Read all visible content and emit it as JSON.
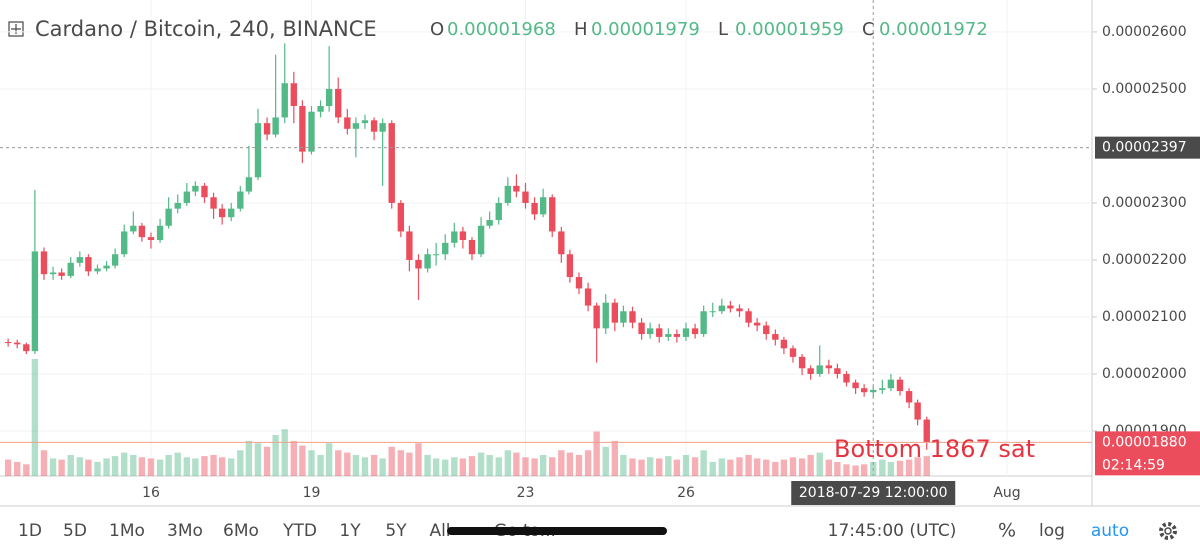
{
  "chart_data": {
    "type": "candlestick",
    "title": "Cardano / Bitcoin, 240, BINANCE",
    "ohlc_labels": [
      "O",
      "H",
      "L",
      "C"
    ],
    "ohlc_values": [
      1.968e-05,
      1.979e-05,
      1.959e-05,
      1.972e-05
    ],
    "up_color": "#53b987",
    "down_color": "#eb4d5c",
    "log_scale": false,
    "grid": true,
    "xlim": [
      13.178,
      33.589
    ],
    "xticks": [
      16,
      19,
      23,
      26,
      {
        "value": 32,
        "label": "Aug"
      }
    ],
    "ylim": [
      1.821e-05,
      2.656e-05
    ],
    "yticks": [
      {
        "value": 1.9e-05,
        "label": "0.00001900"
      },
      {
        "value": 2e-05,
        "label": "0.00002000"
      },
      {
        "value": 2.1e-05,
        "label": "0.00002100"
      },
      {
        "value": 2.2e-05,
        "label": "0.00002200"
      },
      {
        "value": 2.3e-05,
        "label": "0.00002300"
      },
      {
        "value": 2.5e-05,
        "label": "0.00002500"
      },
      {
        "value": 2.6e-05,
        "label": "0.00002600"
      }
    ],
    "x": [
      13.33,
      13.5,
      13.67,
      13.83,
      14,
      14.17,
      14.33,
      14.5,
      14.67,
      14.83,
      15,
      15.17,
      15.33,
      15.5,
      15.67,
      15.83,
      16,
      16.17,
      16.33,
      16.5,
      16.67,
      16.83,
      17,
      17.17,
      17.33,
      17.5,
      17.67,
      17.83,
      18,
      18.17,
      18.33,
      18.5,
      18.67,
      18.83,
      19,
      19.17,
      19.33,
      19.5,
      19.67,
      19.83,
      20,
      20.17,
      20.33,
      20.5,
      20.67,
      20.83,
      21,
      21.17,
      21.33,
      21.5,
      21.67,
      21.83,
      22,
      22.17,
      22.33,
      22.5,
      22.67,
      22.83,
      23,
      23.17,
      23.33,
      23.5,
      23.67,
      23.83,
      24,
      24.17,
      24.33,
      24.5,
      24.67,
      24.83,
      25,
      25.17,
      25.33,
      25.5,
      25.67,
      25.83,
      26,
      26.17,
      26.33,
      26.5,
      26.67,
      26.83,
      27,
      27.17,
      27.33,
      27.5,
      27.67,
      27.83,
      28,
      28.17,
      28.33,
      28.5,
      28.67,
      28.83,
      29,
      29.17,
      29.33,
      29.5,
      29.67,
      29.83,
      30,
      30.17,
      30.33,
      30.5
    ],
    "open": [
      2.056e-05,
      2.055e-05,
      2.052e-05,
      2.04e-05,
      2.215e-05,
      2.175e-05,
      2.178e-05,
      2.172e-05,
      2.195e-05,
      2.205e-05,
      2.18e-05,
      2.185e-05,
      2.19e-05,
      2.21e-05,
      2.25e-05,
      2.26e-05,
      2.24e-05,
      2.235e-05,
      2.26e-05,
      2.29e-05,
      2.3e-05,
      2.32e-05,
      2.33e-05,
      2.31e-05,
      2.29e-05,
      2.275e-05,
      2.29e-05,
      2.32e-05,
      2.345e-05,
      2.44e-05,
      2.42e-05,
      2.45e-05,
      2.51e-05,
      2.47e-05,
      2.39e-05,
      2.46e-05,
      2.47e-05,
      2.5e-05,
      2.45e-05,
      2.43e-05,
      2.44e-05,
      2.445e-05,
      2.425e-05,
      2.44e-05,
      2.3e-05,
      2.25e-05,
      2.2e-05,
      2.185e-05,
      2.21e-05,
      2.21e-05,
      2.23e-05,
      2.25e-05,
      2.235e-05,
      2.21e-05,
      2.26e-05,
      2.27e-05,
      2.3e-05,
      2.33e-05,
      2.32e-05,
      2.3e-05,
      2.28e-05,
      2.31e-05,
      2.25e-05,
      2.21e-05,
      2.17e-05,
      2.15e-05,
      2.12e-05,
      2.08e-05,
      2.125e-05,
      2.09e-05,
      2.11e-05,
      2.09e-05,
      2.07e-05,
      2.08e-05,
      2.065e-05,
      2.07e-05,
      2.065e-05,
      2.08e-05,
      2.07e-05,
      2.11e-05,
      2.11e-05,
      2.12e-05,
      2.115e-05,
      2.11e-05,
      2.09e-05,
      2.085e-05,
      2.07e-05,
      2.06e-05,
      2.045e-05,
      2.03e-05,
      2.01e-05,
      2e-05,
      2.015e-05,
      2.01e-05,
      2e-05,
      1.985e-05,
      1.975e-05,
      1.968e-05,
      1.972e-05,
      1.975e-05,
      1.99e-05,
      1.97e-05,
      1.95e-05,
      1.92e-05
    ],
    "high": [
      2.062e-05,
      2.06e-05,
      2.055e-05,
      2.323e-05,
      2.222e-05,
      2.188e-05,
      2.185e-05,
      2.205e-05,
      2.215e-05,
      2.21e-05,
      2.192e-05,
      2.198e-05,
      2.22e-05,
      2.262e-05,
      2.285e-05,
      2.265e-05,
      2.248e-05,
      2.272e-05,
      2.31e-05,
      2.315e-05,
      2.335e-05,
      2.338e-05,
      2.335e-05,
      2.318e-05,
      2.298e-05,
      2.3e-05,
      2.33e-05,
      2.4e-05,
      2.465e-05,
      2.45e-05,
      2.56e-05,
      2.58e-05,
      2.53e-05,
      2.48e-05,
      2.47e-05,
      2.48e-05,
      2.575e-05,
      2.52e-05,
      2.465e-05,
      2.45e-05,
      2.455e-05,
      2.45e-05,
      2.448e-05,
      2.445e-05,
      2.305e-05,
      2.26e-05,
      2.21e-05,
      2.22e-05,
      2.23e-05,
      2.245e-05,
      2.265e-05,
      2.258e-05,
      2.24e-05,
      2.275e-05,
      2.285e-05,
      2.31e-05,
      2.345e-05,
      2.35e-05,
      2.335e-05,
      2.31e-05,
      2.325e-05,
      2.315e-05,
      2.258e-05,
      2.218e-05,
      2.178e-05,
      2.16e-05,
      2.125e-05,
      2.14e-05,
      2.132e-05,
      2.12e-05,
      2.118e-05,
      2.098e-05,
      2.09e-05,
      2.088e-05,
      2.08e-05,
      2.078e-05,
      2.09e-05,
      2.088e-05,
      2.12e-05,
      2.125e-05,
      2.132e-05,
      2.128e-05,
      2.122e-05,
      2.115e-05,
      2.098e-05,
      2.092e-05,
      2.078e-05,
      2.065e-05,
      2.05e-05,
      2.035e-05,
      2.015e-05,
      2.05e-05,
      2.025e-05,
      2.018e-05,
      2.005e-05,
      1.99e-05,
      1.982e-05,
      1.979e-05,
      1.99e-05,
      2e-05,
      1.995e-05,
      1.975e-05,
      1.955e-05,
      1.925e-05
    ],
    "low": [
      2.048e-05,
      2.045e-05,
      2.035e-05,
      2.035e-05,
      2.165e-05,
      2.165e-05,
      2.165e-05,
      2.168e-05,
      2.188e-05,
      2.172e-05,
      2.175e-05,
      2.18e-05,
      2.185e-05,
      2.205e-05,
      2.245e-05,
      2.232e-05,
      2.22e-05,
      2.23e-05,
      2.255e-05,
      2.282e-05,
      2.295e-05,
      2.312e-05,
      2.3e-05,
      2.272e-05,
      2.262e-05,
      2.268e-05,
      2.285e-05,
      2.315e-05,
      2.34e-05,
      2.41e-05,
      2.415e-05,
      2.44e-05,
      2.44e-05,
      2.37e-05,
      2.385e-05,
      2.45e-05,
      2.46e-05,
      2.44e-05,
      2.42e-05,
      2.38e-05,
      2.43e-05,
      2.41e-05,
      2.33e-05,
      2.29e-05,
      2.24e-05,
      2.18e-05,
      2.13e-05,
      2.178e-05,
      2.19e-05,
      2.2e-05,
      2.222e-05,
      2.22e-05,
      2.2e-05,
      2.205e-05,
      2.255e-05,
      2.262e-05,
      2.295e-05,
      2.31e-05,
      2.29e-05,
      2.27e-05,
      2.275e-05,
      2.24e-05,
      2.195e-05,
      2.16e-05,
      2.14e-05,
      2.11e-05,
      2.02e-05,
      2.07e-05,
      2.075e-05,
      2.082e-05,
      2.08e-05,
      2.06e-05,
      2.062e-05,
      2.055e-05,
      2.058e-05,
      2.055e-05,
      2.058e-05,
      2.062e-05,
      2.065e-05,
      2.1e-05,
      2.105e-05,
      2.108e-05,
      2.1e-05,
      2.082e-05,
      2.075e-05,
      2.06e-05,
      2.05e-05,
      2.035e-05,
      2.02e-05,
      1.998e-05,
      1.99e-05,
      1.995e-05,
      2e-05,
      1.992e-05,
      1.978e-05,
      1.965e-05,
      1.96e-05,
      1.959e-05,
      1.965e-05,
      1.97e-05,
      1.962e-05,
      1.94e-05,
      1.91e-05,
      1.867e-05
    ],
    "close": [
      2.055e-05,
      2.052e-05,
      2.04e-05,
      2.215e-05,
      2.175e-05,
      2.178e-05,
      2.172e-05,
      2.195e-05,
      2.205e-05,
      2.18e-05,
      2.185e-05,
      2.19e-05,
      2.21e-05,
      2.25e-05,
      2.26e-05,
      2.24e-05,
      2.235e-05,
      2.26e-05,
      2.29e-05,
      2.3e-05,
      2.32e-05,
      2.33e-05,
      2.31e-05,
      2.29e-05,
      2.275e-05,
      2.29e-05,
      2.32e-05,
      2.345e-05,
      2.44e-05,
      2.42e-05,
      2.45e-05,
      2.51e-05,
      2.47e-05,
      2.39e-05,
      2.46e-05,
      2.47e-05,
      2.5e-05,
      2.45e-05,
      2.43e-05,
      2.44e-05,
      2.445e-05,
      2.425e-05,
      2.44e-05,
      2.3e-05,
      2.25e-05,
      2.2e-05,
      2.185e-05,
      2.21e-05,
      2.21e-05,
      2.23e-05,
      2.25e-05,
      2.235e-05,
      2.21e-05,
      2.26e-05,
      2.27e-05,
      2.3e-05,
      2.33e-05,
      2.32e-05,
      2.3e-05,
      2.28e-05,
      2.31e-05,
      2.25e-05,
      2.21e-05,
      2.17e-05,
      2.15e-05,
      2.12e-05,
      2.08e-05,
      2.125e-05,
      2.09e-05,
      2.11e-05,
      2.09e-05,
      2.07e-05,
      2.08e-05,
      2.065e-05,
      2.07e-05,
      2.065e-05,
      2.08e-05,
      2.07e-05,
      2.11e-05,
      2.11e-05,
      2.12e-05,
      2.115e-05,
      2.11e-05,
      2.09e-05,
      2.085e-05,
      2.07e-05,
      2.06e-05,
      2.045e-05,
      2.03e-05,
      2.01e-05,
      2e-05,
      2.015e-05,
      2.01e-05,
      2e-05,
      1.985e-05,
      1.975e-05,
      1.968e-05,
      1.972e-05,
      1.975e-05,
      1.99e-05,
      1.97e-05,
      1.95e-05,
      1.92e-05,
      1.88e-05
    ],
    "volume": [
      14,
      12,
      10,
      100,
      22,
      15,
      14,
      18,
      16,
      14,
      12,
      15,
      17,
      20,
      18,
      16,
      15,
      14,
      18,
      20,
      16,
      15,
      17,
      18,
      16,
      15,
      22,
      30,
      28,
      25,
      35,
      40,
      30,
      26,
      22,
      18,
      28,
      22,
      20,
      18,
      16,
      18,
      15,
      25,
      22,
      20,
      28,
      18,
      15,
      14,
      16,
      15,
      17,
      20,
      18,
      16,
      22,
      20,
      16,
      15,
      18,
      16,
      22,
      20,
      18,
      22,
      38,
      25,
      30,
      18,
      15,
      14,
      16,
      15,
      17,
      14,
      18,
      16,
      22,
      12,
      15,
      14,
      16,
      18,
      15,
      14,
      12,
      14,
      16,
      15,
      18,
      20,
      14,
      12,
      10,
      9,
      10,
      12,
      14,
      12,
      13,
      14,
      16,
      17
    ],
    "crosshair": {
      "x": 29.5,
      "x_label": "2018-07-29 12:00:00",
      "y": 2.397e-05
    },
    "last_price": {
      "value": 1.88e-05,
      "label": "0.00001880"
    },
    "countdown": "02:14:59",
    "annotation": "Bottom 1867 sat"
  },
  "toolbar": {
    "ranges": [
      "1D",
      "5D",
      "1Mo",
      "3Mo",
      "6Mo",
      "YTD",
      "1Y",
      "5Y",
      "All"
    ],
    "goto": "Go to...",
    "time": "17:45:00 (UTC)",
    "percent": "%",
    "log": "log",
    "auto": "auto"
  }
}
